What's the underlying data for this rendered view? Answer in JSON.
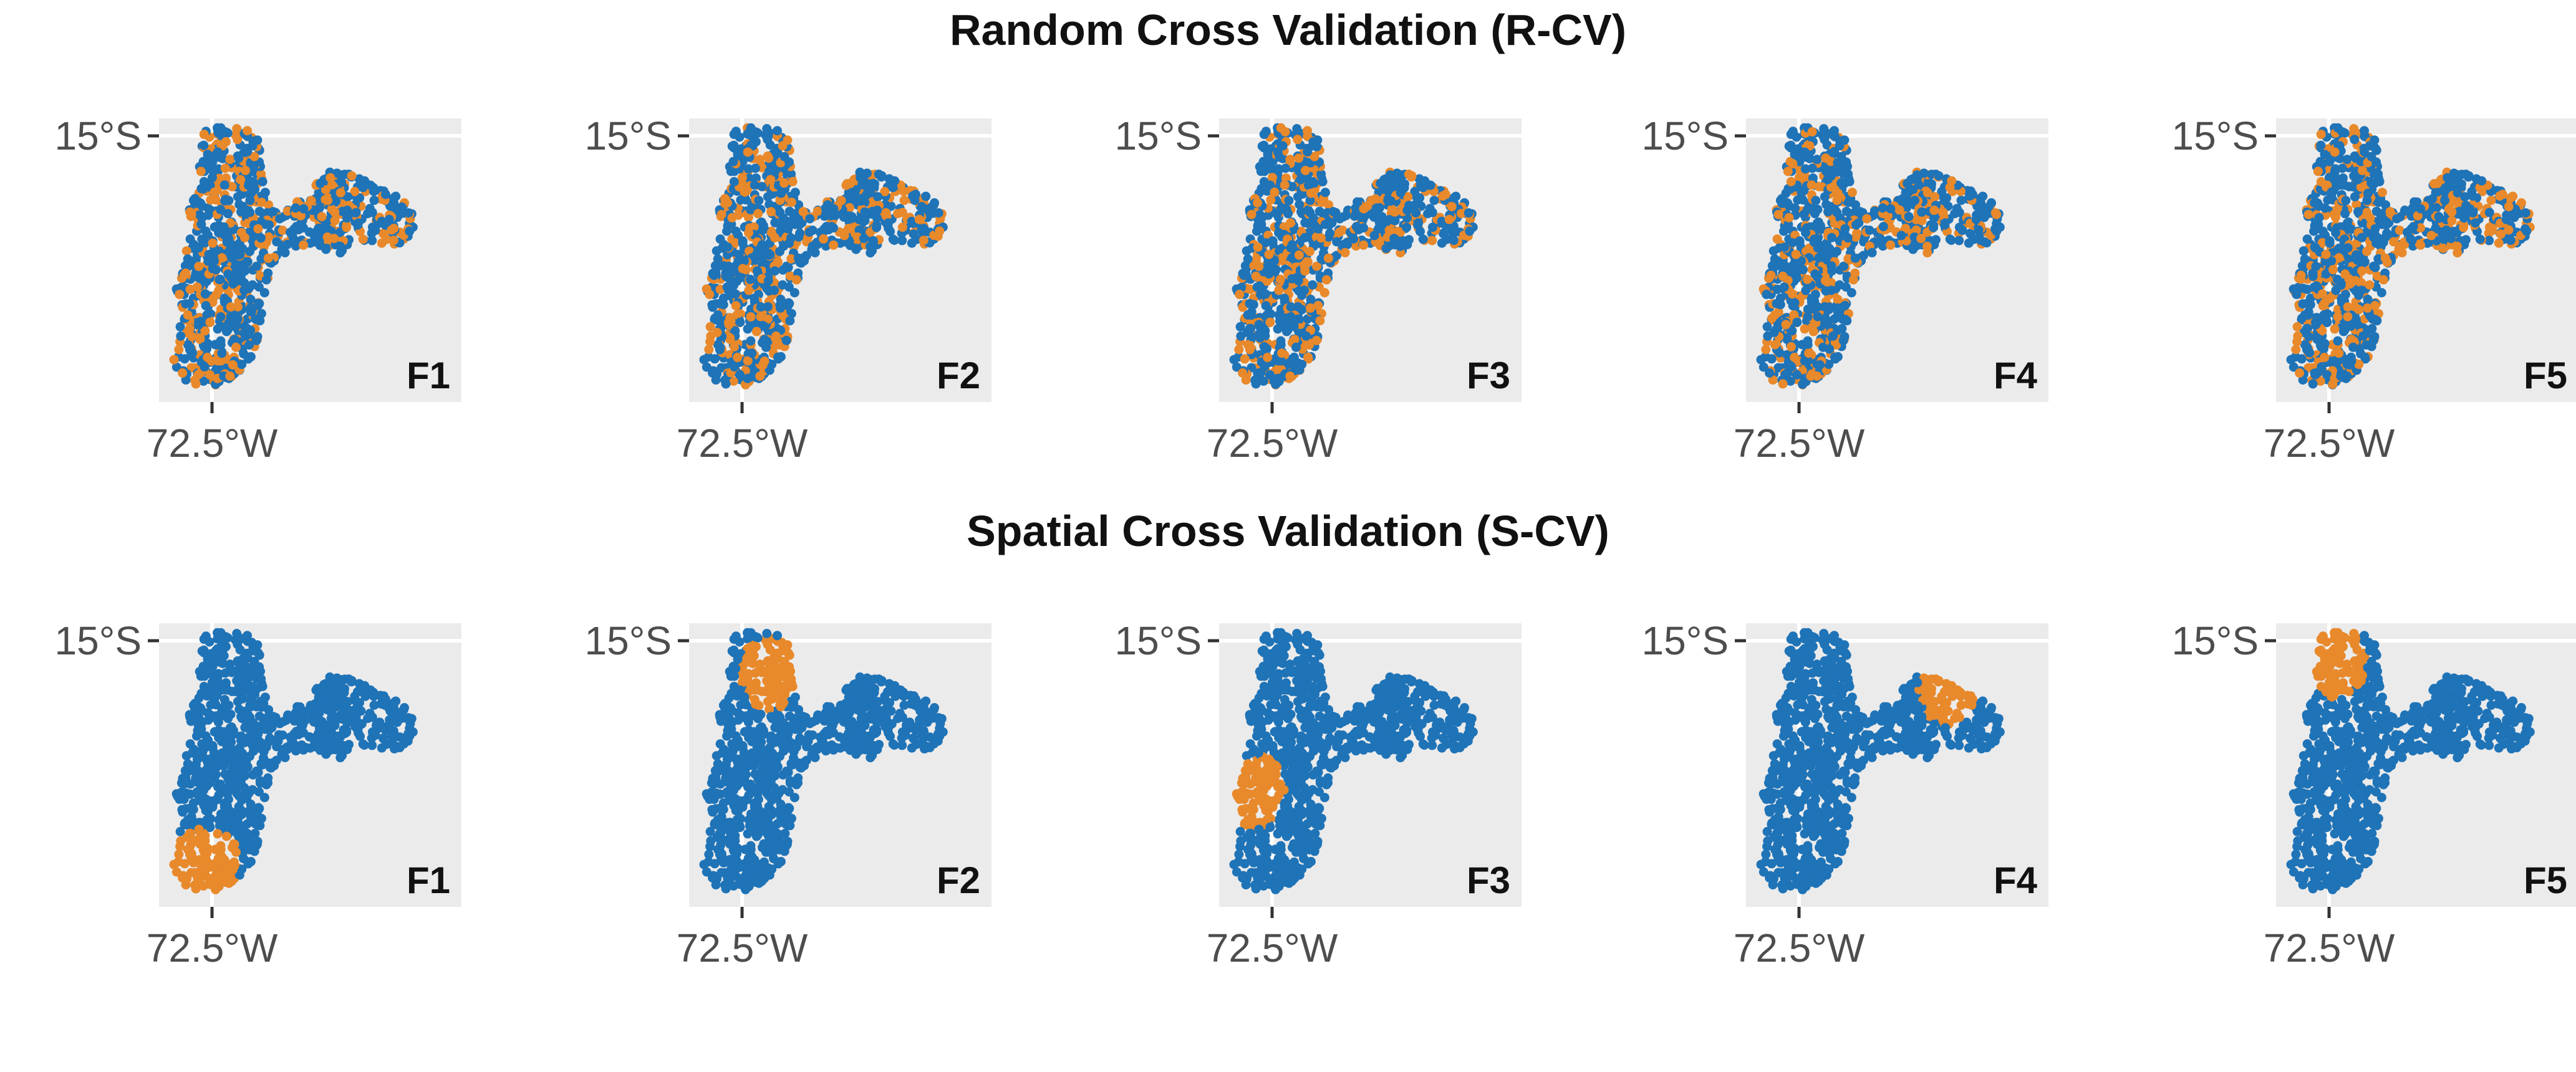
{
  "figure": {
    "rows": [
      {
        "title": "Random Cross Validation (R-CV)",
        "mode": "random",
        "panels": [
          {
            "fold": "F1"
          },
          {
            "fold": "F2"
          },
          {
            "fold": "F3"
          },
          {
            "fold": "F4"
          },
          {
            "fold": "F5"
          }
        ]
      },
      {
        "title": "Spatial Cross Validation (S-CV)",
        "mode": "spatial",
        "panels": [
          {
            "fold": "F1",
            "highlight_region": "southwest"
          },
          {
            "fold": "F2",
            "highlight_region": "north-center"
          },
          {
            "fold": "F3",
            "highlight_region": "west"
          },
          {
            "fold": "F4",
            "highlight_region": "east"
          },
          {
            "fold": "F5",
            "highlight_region": "northwest"
          }
        ]
      }
    ],
    "axes": {
      "y_tick_label": "15°S",
      "x_tick_label": "72.5°W"
    },
    "colors": {
      "training_points": "#1f73b7",
      "validation_points": "#e8892b",
      "panel_background": "#ebebeb",
      "grid_line": "#ffffff",
      "tick_text": "#4d4d4d"
    }
  }
}
